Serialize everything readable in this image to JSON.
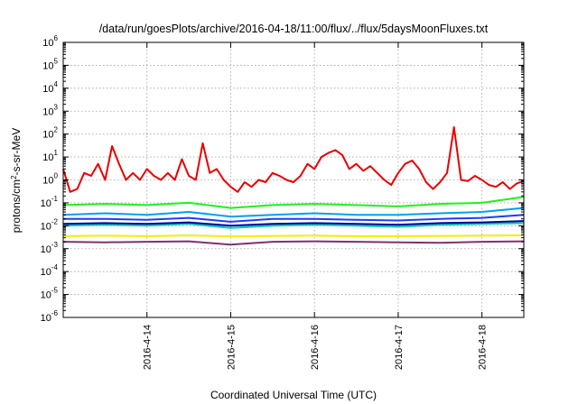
{
  "chart_data": {
    "type": "line",
    "title": "/data/run/goesPlots/archive/2016-04-18/11:00/flux/../flux/5daysMoonFluxes.txt",
    "xlabel": "Coordinated Universal Time (UTC)",
    "ylabel": "protons/cm2-s-sr-MeV",
    "ylabel_parts": {
      "pre": "protons/cm",
      "sup": "2",
      "post": "-s-sr-MeV"
    },
    "yscale": "log",
    "ylim": [
      1e-06,
      1000000.0
    ],
    "xlim": [
      "2016-04-13 00:00",
      "2016-04-18 12:00"
    ],
    "grid": true,
    "x_ticks": [
      "2016-4-14",
      "2016-4-15",
      "2016-4-16",
      "2016-4-17",
      "2016-4-18"
    ],
    "y_ticks": [
      {
        "base": "10",
        "exp": "-6"
      },
      {
        "base": "10",
        "exp": "-5"
      },
      {
        "base": "10",
        "exp": "-4"
      },
      {
        "base": "10",
        "exp": "-3"
      },
      {
        "base": "10",
        "exp": "-2"
      },
      {
        "base": "10",
        "exp": "-1"
      },
      {
        "base": "10",
        "exp": "0"
      },
      {
        "base": "10",
        "exp": "1"
      },
      {
        "base": "10",
        "exp": "2"
      },
      {
        "base": "10",
        "exp": "3"
      },
      {
        "base": "10",
        "exp": "4"
      },
      {
        "base": "10",
        "exp": "5"
      },
      {
        "base": "10",
        "exp": "6"
      }
    ],
    "series": [
      {
        "color": "#e80000",
        "x": [
          "2016-04-13 00:00",
          "2016-04-13 02:00",
          "2016-04-13 04:00",
          "2016-04-13 06:00",
          "2016-04-13 08:00",
          "2016-04-13 10:00",
          "2016-04-13 12:00",
          "2016-04-13 14:00",
          "2016-04-13 16:00",
          "2016-04-13 18:00",
          "2016-04-13 20:00",
          "2016-04-13 22:00",
          "2016-04-14 00:00",
          "2016-04-14 02:00",
          "2016-04-14 04:00",
          "2016-04-14 06:00",
          "2016-04-14 08:00",
          "2016-04-14 10:00",
          "2016-04-14 12:00",
          "2016-04-14 14:00",
          "2016-04-14 16:00",
          "2016-04-14 18:00",
          "2016-04-14 20:00",
          "2016-04-14 22:00",
          "2016-04-15 00:00",
          "2016-04-15 02:00",
          "2016-04-15 04:00",
          "2016-04-15 06:00",
          "2016-04-15 08:00",
          "2016-04-15 10:00",
          "2016-04-15 12:00",
          "2016-04-15 14:00",
          "2016-04-15 16:00",
          "2016-04-15 18:00",
          "2016-04-15 20:00",
          "2016-04-15 22:00",
          "2016-04-16 00:00",
          "2016-04-16 02:00",
          "2016-04-16 04:00",
          "2016-04-16 06:00",
          "2016-04-16 08:00",
          "2016-04-16 10:00",
          "2016-04-16 12:00",
          "2016-04-16 14:00",
          "2016-04-16 16:00",
          "2016-04-16 18:00",
          "2016-04-16 20:00",
          "2016-04-16 22:00",
          "2016-04-17 00:00",
          "2016-04-17 02:00",
          "2016-04-17 04:00",
          "2016-04-17 06:00",
          "2016-04-17 08:00",
          "2016-04-17 10:00",
          "2016-04-17 12:00",
          "2016-04-17 14:00",
          "2016-04-17 16:00",
          "2016-04-17 18:00",
          "2016-04-17 20:00",
          "2016-04-17 22:00",
          "2016-04-18 00:00",
          "2016-04-18 02:00",
          "2016-04-18 04:00",
          "2016-04-18 06:00",
          "2016-04-18 08:00",
          "2016-04-18 10:00",
          "2016-04-18 12:00"
        ],
        "y": [
          3.0,
          0.3,
          0.4,
          2.0,
          1.5,
          5.0,
          1.0,
          30.0,
          5.0,
          1.0,
          2.0,
          1.0,
          3.0,
          1.5,
          1.0,
          2.0,
          1.0,
          8.0,
          1.5,
          1.0,
          40.0,
          2.0,
          3.0,
          1.0,
          0.5,
          0.3,
          0.8,
          0.5,
          1.0,
          0.8,
          2.0,
          1.5,
          1.0,
          0.8,
          1.5,
          5.0,
          3.0,
          10.0,
          15.0,
          20.0,
          12.0,
          3.0,
          5.0,
          2.5,
          4.0,
          2.0,
          1.0,
          0.6,
          2.0,
          5.0,
          7.0,
          3.0,
          0.8,
          0.4,
          0.8,
          2.0,
          200.0,
          1.0,
          0.9,
          1.5,
          1.0,
          0.6,
          0.5,
          0.8,
          0.4,
          0.7,
          0.9
        ]
      },
      {
        "color": "#22ee22",
        "x": [
          "2016-04-13 00:00",
          "2016-04-13 12:00",
          "2016-04-14 00:00",
          "2016-04-14 12:00",
          "2016-04-15 00:00",
          "2016-04-15 12:00",
          "2016-04-16 00:00",
          "2016-04-16 12:00",
          "2016-04-17 00:00",
          "2016-04-17 12:00",
          "2016-04-18 00:00",
          "2016-04-18 12:00"
        ],
        "y": [
          0.08,
          0.09,
          0.08,
          0.1,
          0.06,
          0.08,
          0.09,
          0.08,
          0.07,
          0.09,
          0.1,
          0.18
        ]
      },
      {
        "color": "#00a0f0",
        "x": [
          "2016-04-13 00:00",
          "2016-04-13 12:00",
          "2016-04-14 00:00",
          "2016-04-14 12:00",
          "2016-04-15 00:00",
          "2016-04-15 12:00",
          "2016-04-16 00:00",
          "2016-04-16 12:00",
          "2016-04-17 00:00",
          "2016-04-17 12:00",
          "2016-04-18 00:00",
          "2016-04-18 12:00"
        ],
        "y": [
          0.03,
          0.035,
          0.03,
          0.04,
          0.025,
          0.03,
          0.035,
          0.03,
          0.03,
          0.035,
          0.04,
          0.06
        ]
      },
      {
        "color": "#1e3cff",
        "x": [
          "2016-04-13 00:00",
          "2016-04-13 12:00",
          "2016-04-14 00:00",
          "2016-04-14 12:00",
          "2016-04-15 00:00",
          "2016-04-15 12:00",
          "2016-04-16 00:00",
          "2016-04-16 12:00",
          "2016-04-17 00:00",
          "2016-04-17 12:00",
          "2016-04-18 00:00",
          "2016-04-18 12:00"
        ],
        "y": [
          0.02,
          0.02,
          0.018,
          0.022,
          0.015,
          0.02,
          0.02,
          0.018,
          0.017,
          0.02,
          0.022,
          0.03
        ]
      },
      {
        "color": "#00cca8",
        "x": [
          "2016-04-13 00:00",
          "2016-04-13 12:00",
          "2016-04-14 00:00",
          "2016-04-14 12:00",
          "2016-04-15 00:00",
          "2016-04-15 12:00",
          "2016-04-16 00:00",
          "2016-04-16 12:00",
          "2016-04-17 00:00",
          "2016-04-17 12:00",
          "2016-04-18 00:00",
          "2016-04-18 12:00"
        ],
        "y": [
          0.01,
          0.011,
          0.01,
          0.012,
          0.008,
          0.01,
          0.011,
          0.01,
          0.009,
          0.011,
          0.012,
          0.013
        ]
      },
      {
        "color": "#0000a0",
        "x": [
          "2016-04-13 00:00",
          "2016-04-13 12:00",
          "2016-04-14 00:00",
          "2016-04-14 12:00",
          "2016-04-15 00:00",
          "2016-04-15 12:00",
          "2016-04-16 00:00",
          "2016-04-16 12:00",
          "2016-04-17 00:00",
          "2016-04-17 12:00",
          "2016-04-18 00:00",
          "2016-04-18 12:00"
        ],
        "y": [
          0.012,
          0.013,
          0.012,
          0.014,
          0.01,
          0.012,
          0.013,
          0.012,
          0.011,
          0.013,
          0.014,
          0.016
        ]
      },
      {
        "color": "#f0f000",
        "x": [
          "2016-04-13 00:00",
          "2016-04-13 12:00",
          "2016-04-14 00:00",
          "2016-04-14 12:00",
          "2016-04-15 00:00",
          "2016-04-15 12:00",
          "2016-04-16 00:00",
          "2016-04-16 12:00",
          "2016-04-17 00:00",
          "2016-04-17 12:00",
          "2016-04-18 00:00",
          "2016-04-18 12:00"
        ],
        "y": [
          0.0035,
          0.0037,
          0.0035,
          0.0038,
          0.0034,
          0.0036,
          0.0037,
          0.0035,
          0.0035,
          0.0036,
          0.0037,
          0.0038
        ]
      },
      {
        "color": "#803070",
        "x": [
          "2016-04-13 00:00",
          "2016-04-13 12:00",
          "2016-04-14 00:00",
          "2016-04-14 12:00",
          "2016-04-15 00:00",
          "2016-04-15 12:00",
          "2016-04-16 00:00",
          "2016-04-16 12:00",
          "2016-04-17 00:00",
          "2016-04-17 12:00",
          "2016-04-18 00:00",
          "2016-04-18 12:00"
        ],
        "y": [
          0.002,
          0.0019,
          0.002,
          0.0021,
          0.0015,
          0.002,
          0.0021,
          0.002,
          0.0019,
          0.0018,
          0.002,
          0.0021
        ]
      }
    ]
  }
}
